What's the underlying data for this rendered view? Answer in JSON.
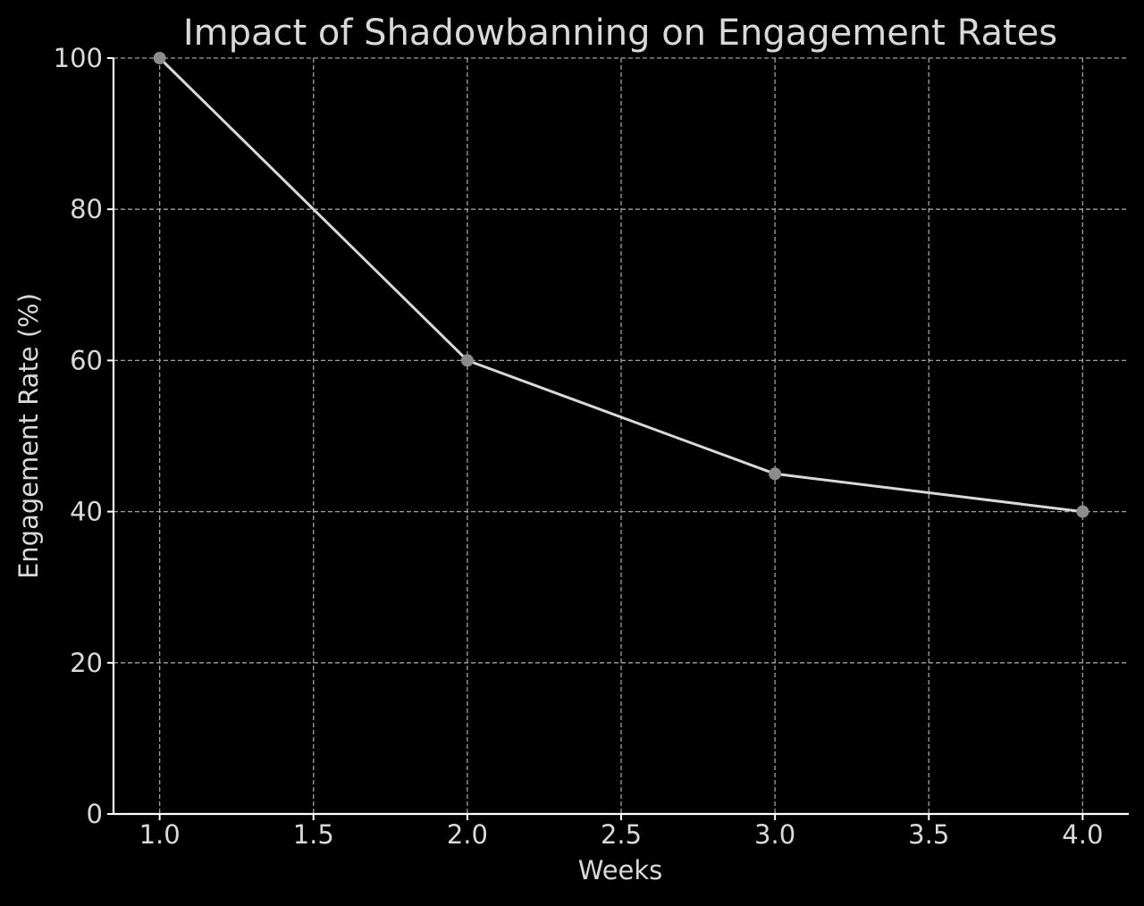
{
  "chart_data": {
    "type": "line",
    "title": "Impact of Shadowbanning on Engagement Rates",
    "xlabel": "Weeks",
    "ylabel": "Engagement Rate (%)",
    "x": [
      1.0,
      2.0,
      3.0,
      4.0
    ],
    "series": [
      {
        "values": [
          100,
          60,
          45,
          40
        ],
        "line_color": "#d9d9d9",
        "marker_color": "#8c8c8c",
        "marker": "circle"
      }
    ],
    "xlim": [
      0.85,
      4.15
    ],
    "ylim": [
      0,
      100
    ],
    "xticks": [
      1.0,
      1.5,
      2.0,
      2.5,
      3.0,
      3.5,
      4.0
    ],
    "xtick_labels": [
      "1.0",
      "1.5",
      "2.0",
      "2.5",
      "3.0",
      "3.5",
      "4.0"
    ],
    "yticks": [
      0,
      20,
      40,
      60,
      80,
      100
    ],
    "ytick_labels": [
      "0",
      "20",
      "40",
      "60",
      "80",
      "100"
    ],
    "grid": true,
    "background_color": "#000000",
    "text_color": "#d9d9d9",
    "grid_color": "#bdbdbd"
  }
}
